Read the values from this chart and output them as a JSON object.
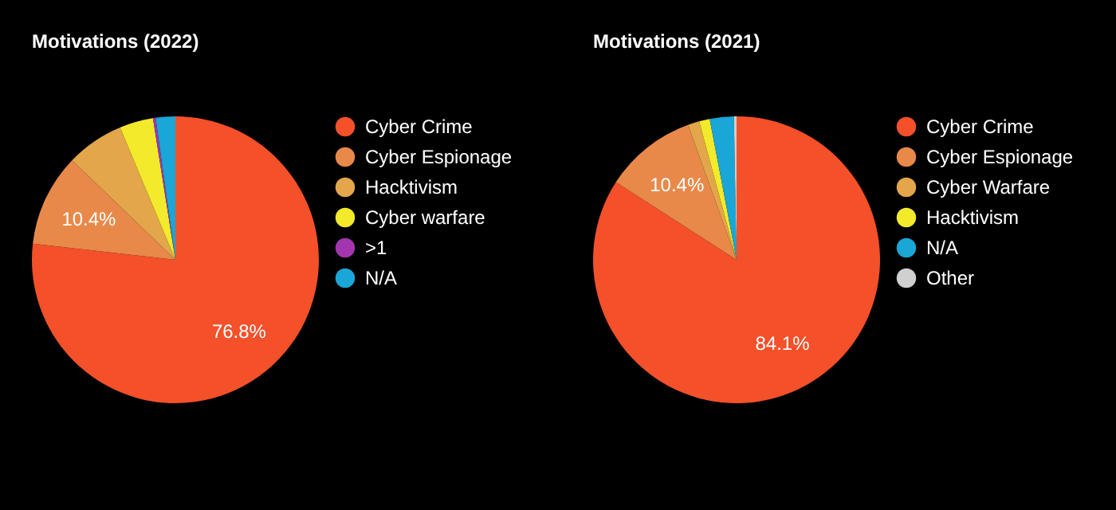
{
  "chart_data": [
    {
      "type": "pie",
      "title": "Motivations (2022)",
      "legend": "right",
      "categories": [
        "Cyber Crime",
        "Cyber Espionage",
        "Hacktivism",
        "Cyber warfare",
        ">1",
        "N/A"
      ],
      "values": [
        76.8,
        10.4,
        6.5,
        3.8,
        0.3,
        2.2
      ],
      "colors": [
        "#f4502a",
        "#e8894a",
        "#e3a64a",
        "#f2ea2a",
        "#a335b0",
        "#1aa6d6"
      ],
      "value_labels": [
        "76.8%",
        "10.4%",
        null,
        null,
        null,
        null
      ]
    },
    {
      "type": "pie",
      "title": "Motivations (2021)",
      "legend": "right",
      "categories": [
        "Cyber Crime",
        "Cyber Espionage",
        "Cyber Warfare",
        "Hacktivism",
        "N/A",
        "Other"
      ],
      "values": [
        84.1,
        10.4,
        1.3,
        1.2,
        2.7,
        0.3
      ],
      "colors": [
        "#f4502a",
        "#e8894a",
        "#e3a64a",
        "#f2ea2a",
        "#1aa6d6",
        "#d0d0d0"
      ],
      "value_labels": [
        "84.1%",
        "10.4%",
        null,
        null,
        null,
        null
      ]
    }
  ]
}
